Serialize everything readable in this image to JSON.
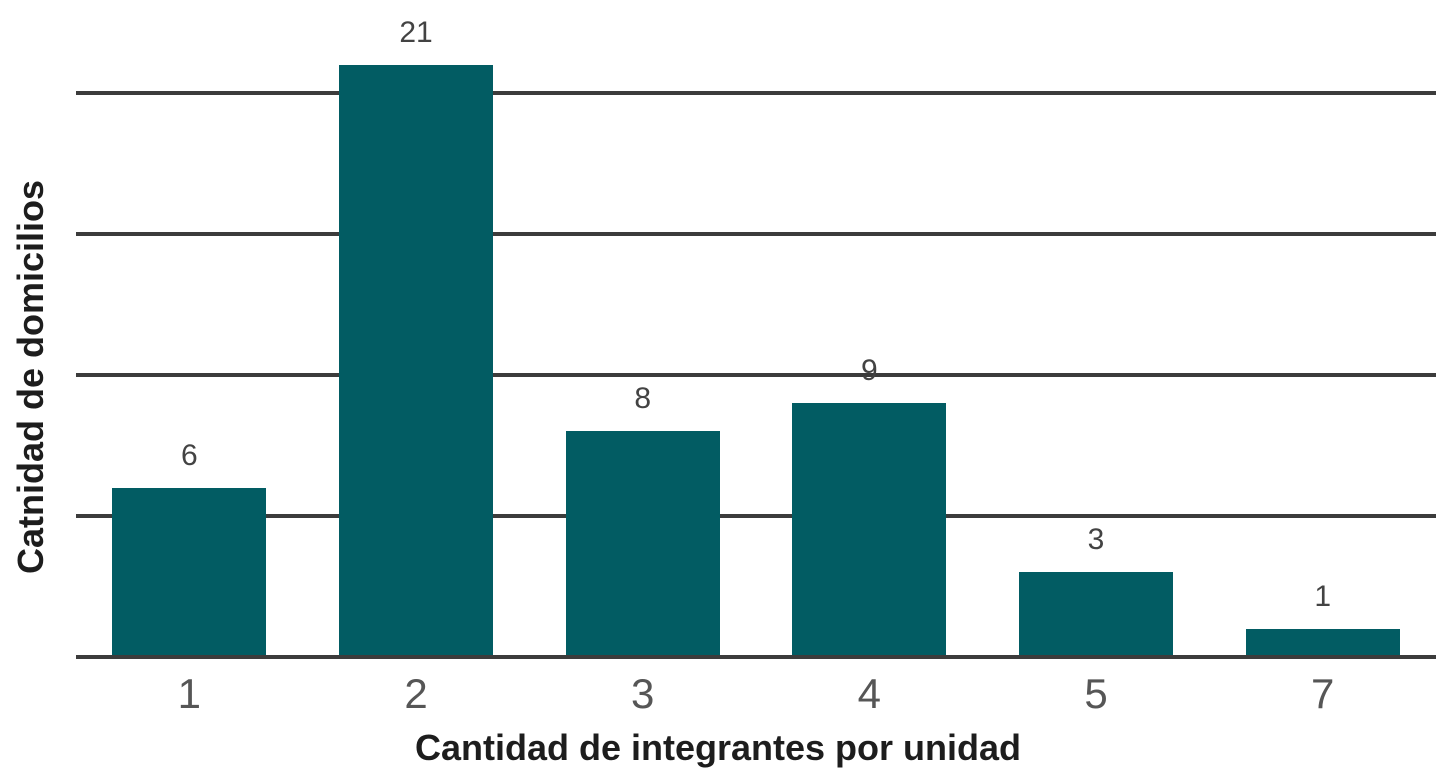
{
  "chart_data": {
    "type": "bar",
    "categories": [
      "1",
      "2",
      "3",
      "4",
      "5",
      "7"
    ],
    "values": [
      6,
      21,
      8,
      9,
      3,
      1
    ],
    "data_labels": [
      "6",
      "21",
      "8",
      "9",
      "3",
      "1"
    ],
    "title": "",
    "xlabel": "Cantidad de integrantes por unidad",
    "ylabel": "Catnidad de domicilios",
    "ylim": [
      0,
      23.3
    ],
    "gridline_values": [
      0,
      5,
      10,
      15,
      20
    ],
    "y_tick_labels_visible": false,
    "grid": "horizontal",
    "legend_position": "none",
    "bar_color": "#025c63"
  },
  "colors": {
    "bar": "#025c63",
    "gridline": "#3c3c3c",
    "tick_label": "#565656",
    "value_label": "#434343",
    "axis_title": "#1d1d1d",
    "background": "#ffffff"
  }
}
